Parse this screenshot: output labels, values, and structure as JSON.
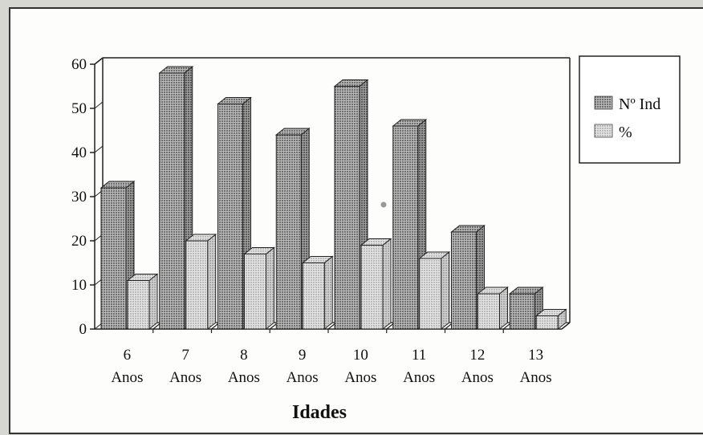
{
  "chart_data": {
    "type": "bar",
    "title": "",
    "xlabel": "Idades",
    "ylabel": "",
    "ylim": [
      0,
      60
    ],
    "yticks": [
      0,
      10,
      20,
      30,
      40,
      50,
      60
    ],
    "categories": [
      {
        "top": "6",
        "bottom": "Anos"
      },
      {
        "top": "7",
        "bottom": "Anos"
      },
      {
        "top": "8",
        "bottom": "Anos"
      },
      {
        "top": "9",
        "bottom": "Anos"
      },
      {
        "top": "10",
        "bottom": "Anos"
      },
      {
        "top": "11",
        "bottom": "Anos"
      },
      {
        "top": "12",
        "bottom": "Anos"
      },
      {
        "top": "13",
        "bottom": "Anos"
      }
    ],
    "series": [
      {
        "name": "Nº Ind",
        "values": [
          32,
          58,
          51,
          44,
          55,
          46,
          22,
          8
        ],
        "color": "#8c8c8c"
      },
      {
        "name": "%",
        "values": [
          11,
          20,
          17,
          15,
          19,
          16,
          8,
          3
        ],
        "color": "#c4c4c4"
      }
    ],
    "legend_position": "right",
    "grid": false,
    "style": "3d-bar"
  }
}
